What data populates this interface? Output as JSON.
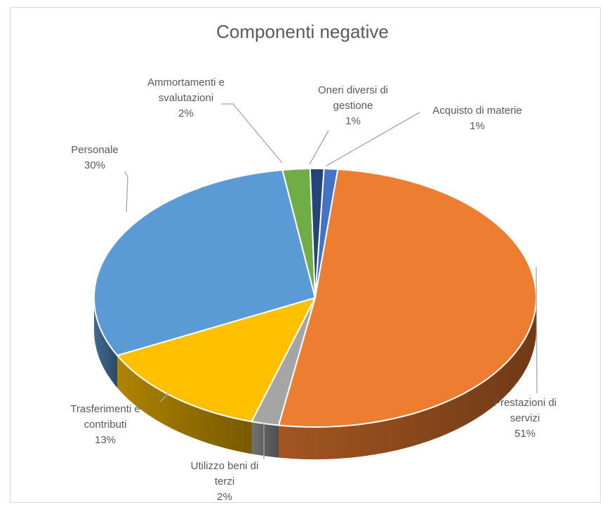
{
  "chart_data": {
    "type": "pie",
    "title": "Componenti negative",
    "slices": [
      {
        "lines": [
          "Acquisto di materie",
          "1%"
        ],
        "value": 1,
        "color": "#4472c4"
      },
      {
        "lines": [
          "Prestazioni di",
          "servizi",
          "51%"
        ],
        "value": 51,
        "color": "#ed7d31"
      },
      {
        "lines": [
          "Utilizzo  beni di",
          "terzi",
          "2%"
        ],
        "value": 2,
        "color": "#a5a5a5"
      },
      {
        "lines": [
          "Trasferimenti e",
          "contributi",
          "13%"
        ],
        "value": 13,
        "color": "#ffc000"
      },
      {
        "lines": [
          "Personale",
          "30%"
        ],
        "value": 30,
        "color": "#5b9bd5"
      },
      {
        "lines": [
          "Ammortamenti e",
          "svalutazioni",
          "2%"
        ],
        "value": 2,
        "color": "#70ad47"
      },
      {
        "lines": [
          "Oneri diversi di",
          "gestione",
          "1%"
        ],
        "value": 1,
        "color": "#264478"
      }
    ]
  }
}
